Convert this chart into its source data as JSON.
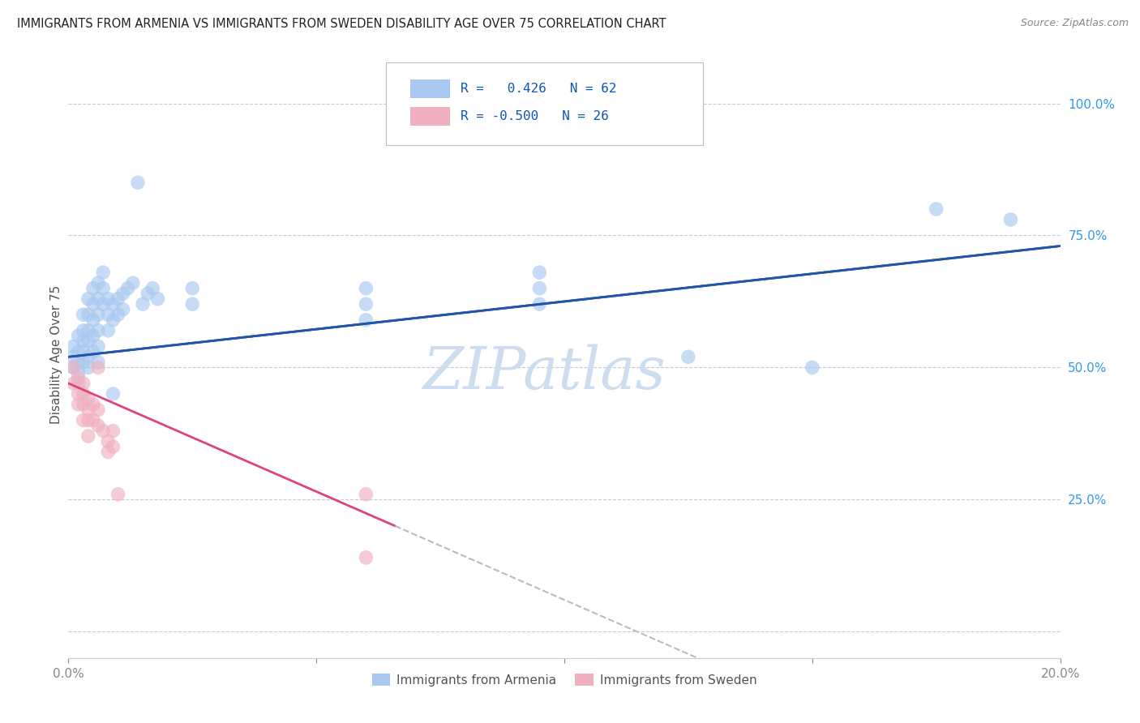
{
  "title": "IMMIGRANTS FROM ARMENIA VS IMMIGRANTS FROM SWEDEN DISABILITY AGE OVER 75 CORRELATION CHART",
  "source": "Source: ZipAtlas.com",
  "ylabel": "Disability Age Over 75",
  "xlim": [
    0.0,
    0.2
  ],
  "ylim": [
    -0.05,
    1.1
  ],
  "yticks": [
    0.0,
    0.25,
    0.5,
    0.75,
    1.0
  ],
  "ytick_labels": [
    "",
    "25.0%",
    "50.0%",
    "75.0%",
    "100.0%"
  ],
  "xticks": [
    0.0,
    0.05,
    0.1,
    0.15,
    0.2
  ],
  "xtick_labels": [
    "0.0%",
    "",
    "",
    "",
    "20.0%"
  ],
  "legend_R_armenia": "0.426",
  "legend_N_armenia": "62",
  "legend_R_sweden": "-0.500",
  "legend_N_sweden": "26",
  "armenia_color": "#a8c8f0",
  "sweden_color": "#f0b0c0",
  "line_armenia_color": "#2255aa",
  "line_sweden_color": "#dd4477",
  "background_color": "#ffffff",
  "grid_color": "#c8c8d8",
  "armenia_points": [
    [
      0.001,
      0.52
    ],
    [
      0.001,
      0.54
    ],
    [
      0.001,
      0.5
    ],
    [
      0.002,
      0.56
    ],
    [
      0.002,
      0.53
    ],
    [
      0.002,
      0.51
    ],
    [
      0.002,
      0.49
    ],
    [
      0.002,
      0.47
    ],
    [
      0.003,
      0.6
    ],
    [
      0.003,
      0.57
    ],
    [
      0.003,
      0.55
    ],
    [
      0.003,
      0.53
    ],
    [
      0.003,
      0.51
    ],
    [
      0.004,
      0.63
    ],
    [
      0.004,
      0.6
    ],
    [
      0.004,
      0.57
    ],
    [
      0.004,
      0.55
    ],
    [
      0.004,
      0.52
    ],
    [
      0.004,
      0.5
    ],
    [
      0.005,
      0.65
    ],
    [
      0.005,
      0.62
    ],
    [
      0.005,
      0.59
    ],
    [
      0.005,
      0.56
    ],
    [
      0.005,
      0.53
    ],
    [
      0.006,
      0.66
    ],
    [
      0.006,
      0.63
    ],
    [
      0.006,
      0.6
    ],
    [
      0.006,
      0.57
    ],
    [
      0.006,
      0.54
    ],
    [
      0.006,
      0.51
    ],
    [
      0.007,
      0.68
    ],
    [
      0.007,
      0.65
    ],
    [
      0.007,
      0.62
    ],
    [
      0.008,
      0.63
    ],
    [
      0.008,
      0.6
    ],
    [
      0.008,
      0.57
    ],
    [
      0.009,
      0.62
    ],
    [
      0.009,
      0.59
    ],
    [
      0.009,
      0.45
    ],
    [
      0.01,
      0.63
    ],
    [
      0.01,
      0.6
    ],
    [
      0.011,
      0.64
    ],
    [
      0.011,
      0.61
    ],
    [
      0.012,
      0.65
    ],
    [
      0.013,
      0.66
    ],
    [
      0.014,
      0.85
    ],
    [
      0.015,
      0.62
    ],
    [
      0.016,
      0.64
    ],
    [
      0.017,
      0.65
    ],
    [
      0.018,
      0.63
    ],
    [
      0.025,
      0.65
    ],
    [
      0.025,
      0.62
    ],
    [
      0.06,
      0.65
    ],
    [
      0.06,
      0.62
    ],
    [
      0.06,
      0.59
    ],
    [
      0.095,
      0.68
    ],
    [
      0.095,
      0.65
    ],
    [
      0.095,
      0.62
    ],
    [
      0.125,
      0.52
    ],
    [
      0.15,
      0.5
    ],
    [
      0.175,
      0.8
    ],
    [
      0.19,
      0.78
    ]
  ],
  "sweden_points": [
    [
      0.001,
      0.5
    ],
    [
      0.001,
      0.47
    ],
    [
      0.002,
      0.48
    ],
    [
      0.002,
      0.45
    ],
    [
      0.002,
      0.43
    ],
    [
      0.003,
      0.47
    ],
    [
      0.003,
      0.45
    ],
    [
      0.003,
      0.43
    ],
    [
      0.003,
      0.4
    ],
    [
      0.004,
      0.44
    ],
    [
      0.004,
      0.42
    ],
    [
      0.004,
      0.4
    ],
    [
      0.004,
      0.37
    ],
    [
      0.005,
      0.43
    ],
    [
      0.005,
      0.4
    ],
    [
      0.006,
      0.5
    ],
    [
      0.006,
      0.42
    ],
    [
      0.006,
      0.39
    ],
    [
      0.007,
      0.38
    ],
    [
      0.008,
      0.36
    ],
    [
      0.008,
      0.34
    ],
    [
      0.009,
      0.38
    ],
    [
      0.009,
      0.35
    ],
    [
      0.01,
      0.26
    ],
    [
      0.06,
      0.26
    ],
    [
      0.06,
      0.14
    ]
  ],
  "watermark_text": "ZIPatlas",
  "watermark_fontsize": 52
}
